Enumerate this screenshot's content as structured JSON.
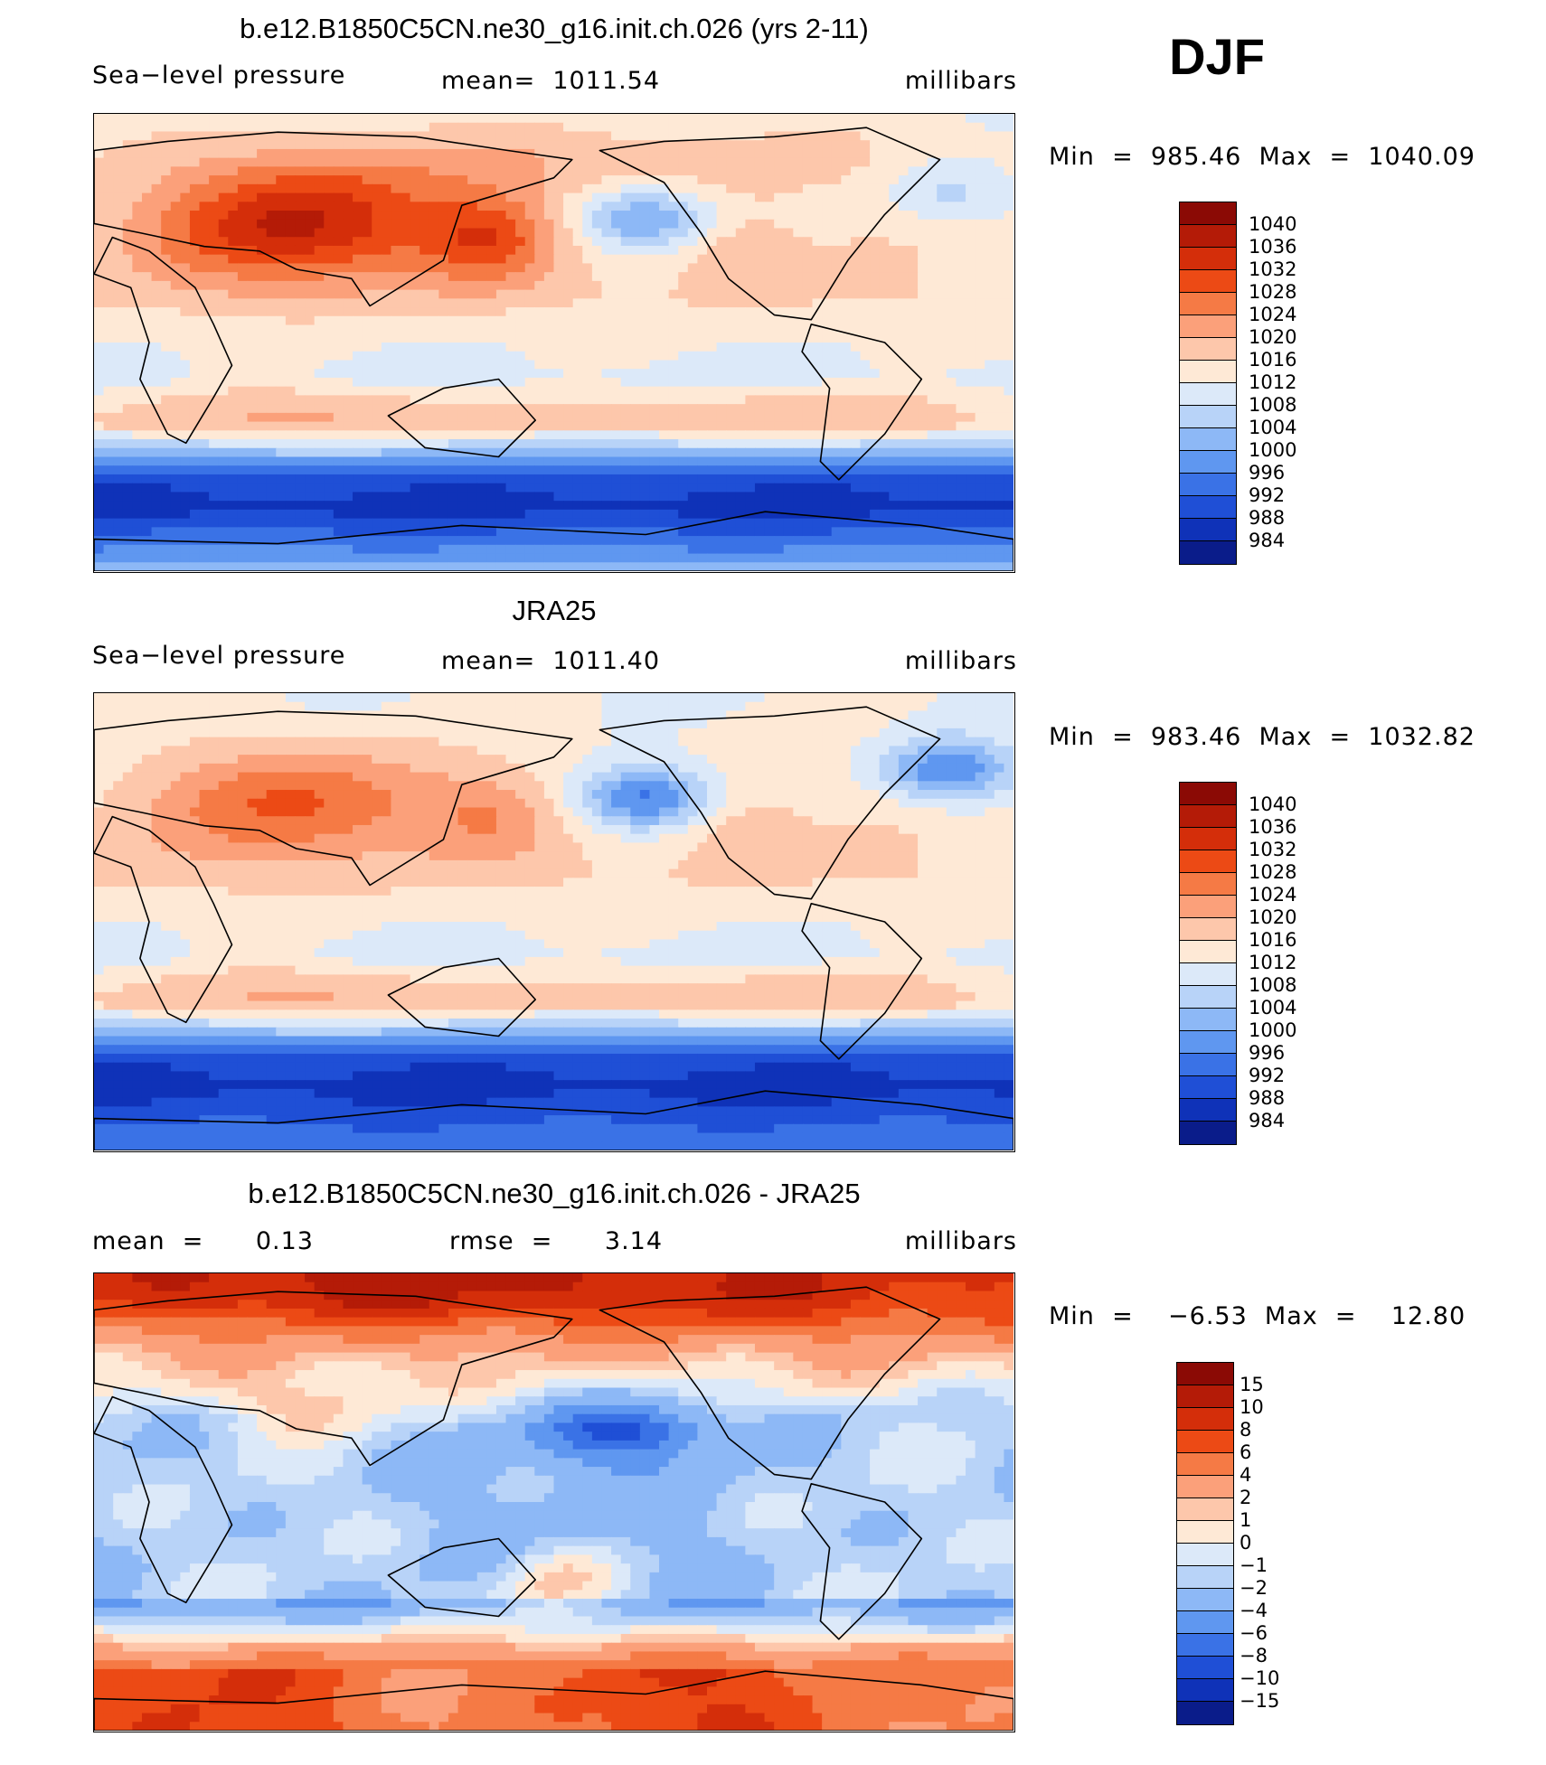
{
  "header": {
    "season": "DJF"
  },
  "panels": [
    {
      "title": "b.e12.B1850C5CN.ne30_g16.init.ch.026 (yrs 2-11)",
      "left_label": "Sea−level pressure",
      "center_label": "mean=  1011.54",
      "right_label": "millibars",
      "minmax": "Min  =  985.46  Max  =  1040.09",
      "field": "model"
    },
    {
      "title": "JRA25",
      "left_label": "Sea−level pressure",
      "center_label": "mean=  1011.40",
      "right_label": "millibars",
      "minmax": "Min  =  983.46  Max  =  1032.82",
      "field": "obs"
    },
    {
      "title": "b.e12.B1850C5CN.ne30_g16.init.ch.026 - JRA25",
      "left_label": "mean  =      0.13",
      "center_label": "rmse  =      3.14",
      "right_label": "millibars",
      "minmax": "Min  =    −6.53  Max  =    12.80",
      "field": "diff"
    }
  ],
  "colorbars": {
    "slp": {
      "labels": [
        "1040",
        "1036",
        "1032",
        "1028",
        "1024",
        "1020",
        "1016",
        "1012",
        "1008",
        "1004",
        "1000",
        "996",
        "992",
        "988",
        "984"
      ],
      "colors": [
        "#8b0a05",
        "#b41b07",
        "#d42e0a",
        "#ec4a15",
        "#f57a45",
        "#fba07a",
        "#fdc7ab",
        "#fee9d6",
        "#dce9f9",
        "#b8d3f8",
        "#8db8f6",
        "#5f97f0",
        "#3a72e6",
        "#1f4fd6",
        "#0f32b8",
        "#0a1c8a"
      ]
    },
    "diff": {
      "labels": [
        "15",
        "10",
        "8",
        "6",
        "4",
        "2",
        "1",
        "0",
        "−1",
        "−2",
        "−4",
        "−6",
        "−8",
        "−10",
        "−15"
      ],
      "colors": [
        "#8b0a05",
        "#b41b07",
        "#d42e0a",
        "#ec4a15",
        "#f57a45",
        "#fba07a",
        "#fdc7ab",
        "#fee9d6",
        "#dce9f9",
        "#b8d3f8",
        "#8db8f6",
        "#5f97f0",
        "#3a72e6",
        "#1f4fd6",
        "#0f32b8",
        "#0a1c8a"
      ]
    }
  }
}
